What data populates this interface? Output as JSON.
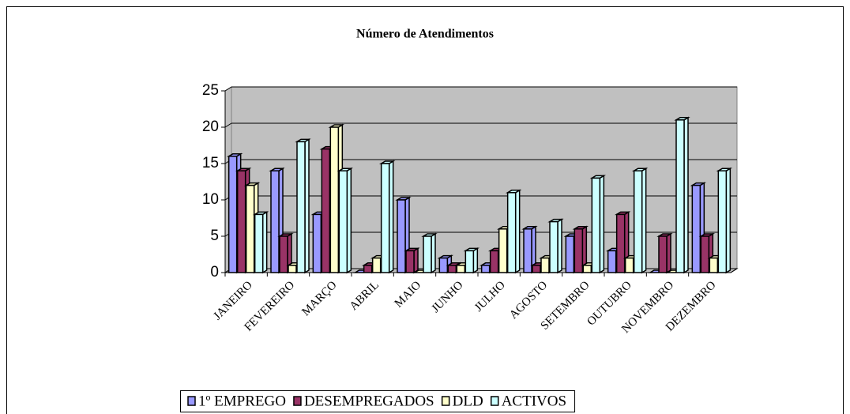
{
  "chart_data": {
    "type": "bar3d",
    "title": "Número de Atendimentos",
    "categories": [
      "JANEIRO",
      "FEVEREIRO",
      "MARÇO",
      "ABRIL",
      "MAIO",
      "JUNHO",
      "JULHO",
      "AGOSTO",
      "SETEMBRO",
      "OUTUBRO",
      "NOVEMBRO",
      "DEZEMBRO"
    ],
    "series": [
      {
        "name": "1º EMPREGO",
        "color": "#9999ff",
        "values": [
          16,
          14,
          8,
          0,
          10,
          2,
          1,
          6,
          5,
          3,
          0,
          12
        ]
      },
      {
        "name": "DESEMPREGADOS",
        "color": "#993366",
        "values": [
          14,
          5,
          17,
          1,
          3,
          1,
          3,
          1,
          6,
          8,
          5,
          5
        ]
      },
      {
        "name": "DLD",
        "color": "#ffffcc",
        "values": [
          12,
          1,
          20,
          2,
          0,
          1,
          6,
          2,
          1,
          2,
          0,
          2
        ]
      },
      {
        "name": "ACTIVOS",
        "color": "#ccffff",
        "values": [
          8,
          18,
          14,
          15,
          5,
          3,
          11,
          7,
          13,
          14,
          21,
          14
        ]
      }
    ],
    "ylim": [
      0,
      25
    ],
    "yticks": [
      0,
      5,
      10,
      15,
      20,
      25
    ],
    "grid": true,
    "legend": "bottom"
  }
}
